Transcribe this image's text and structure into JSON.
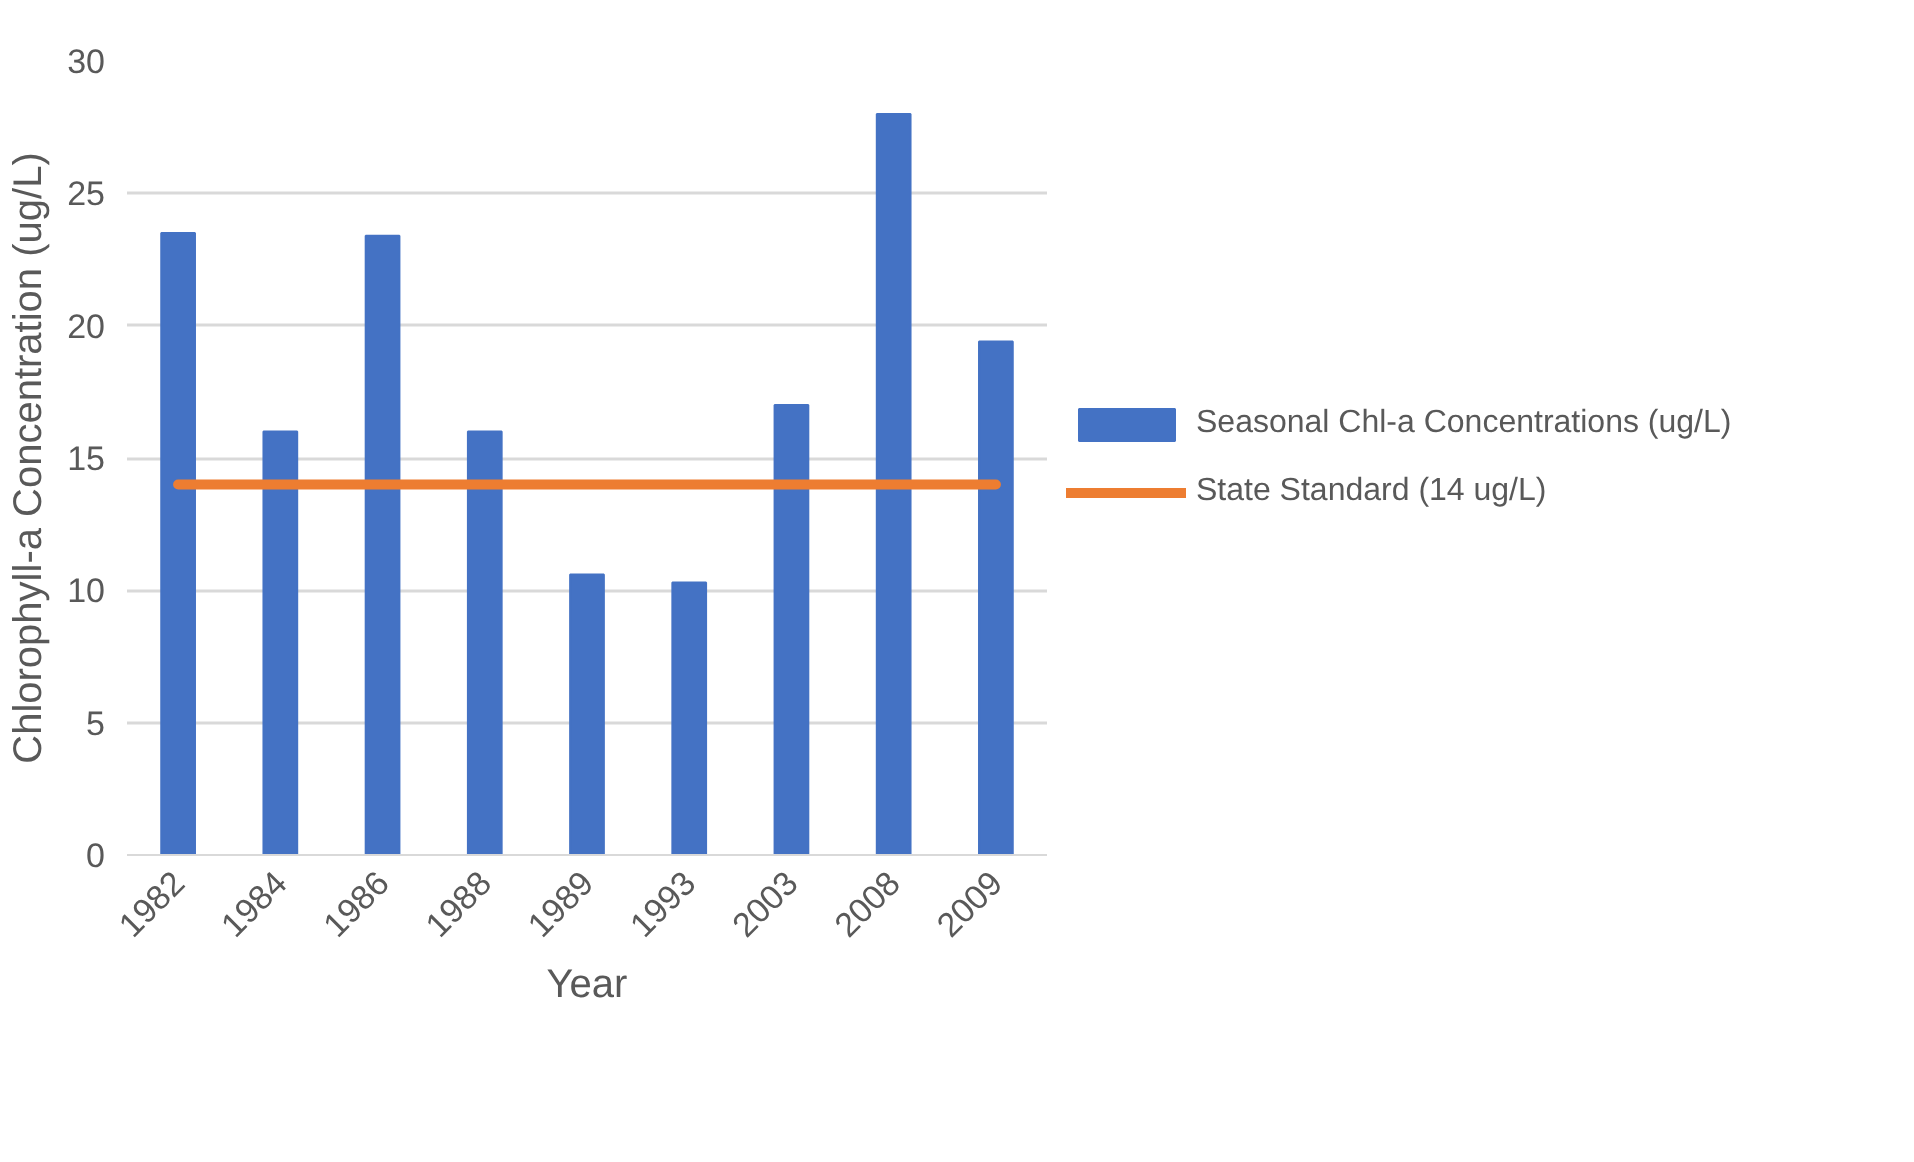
{
  "chart_data": {
    "type": "bar",
    "xlabel": "Year",
    "ylabel": "Chlorophyll-a Concentration (ug/L)",
    "categories": [
      "1982",
      "1984",
      "1986",
      "1988",
      "1989",
      "1993",
      "2003",
      "2008",
      "2009"
    ],
    "series": [
      {
        "name": "Seasonal Chl-a Concentrations (ug/L)",
        "color": "#4472c4",
        "values": [
          23.5,
          16.0,
          23.4,
          16.0,
          10.6,
          10.3,
          17.0,
          28.0,
          19.4
        ]
      },
      {
        "name": "State Standard (14 ug/L)",
        "type": "line",
        "color": "#ed7d31",
        "values": [
          14,
          14,
          14,
          14,
          14,
          14,
          14,
          14,
          14
        ]
      }
    ],
    "ylim": [
      0,
      30
    ],
    "yticks": [
      0,
      5,
      10,
      15,
      20,
      25,
      30
    ],
    "grid": "y",
    "legend": "right"
  }
}
